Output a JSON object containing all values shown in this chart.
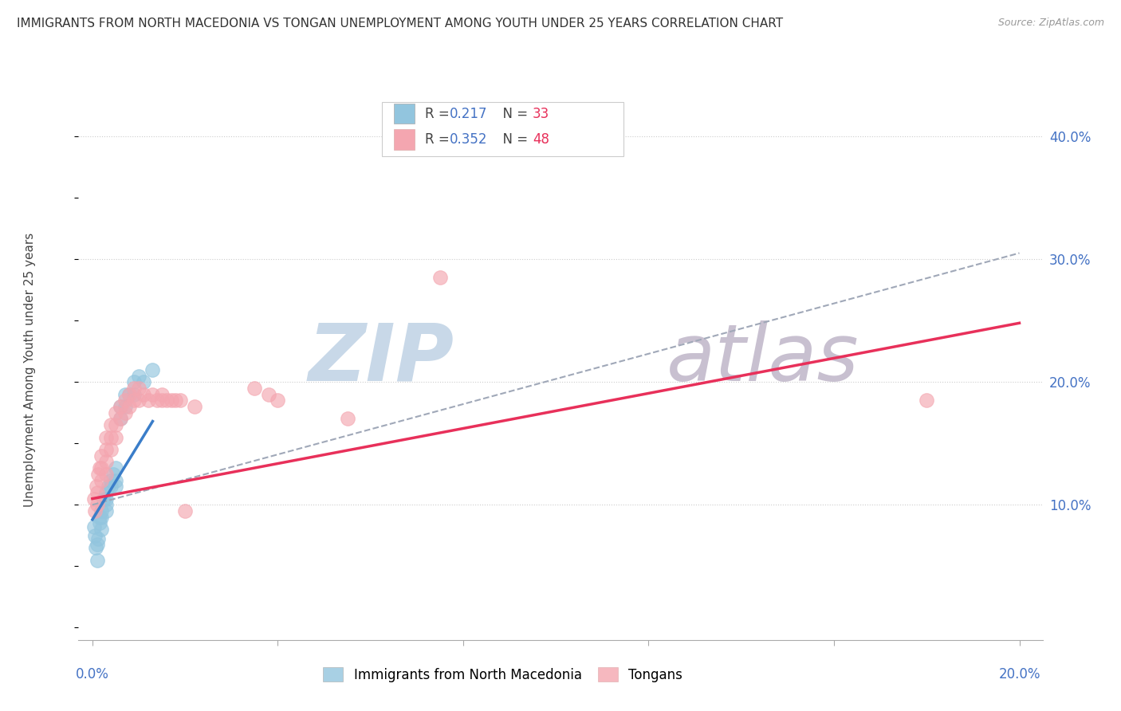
{
  "title": "IMMIGRANTS FROM NORTH MACEDONIA VS TONGAN UNEMPLOYMENT AMONG YOUTH UNDER 25 YEARS CORRELATION CHART",
  "source": "Source: ZipAtlas.com",
  "ylabel": "Unemployment Among Youth under 25 years",
  "legend1_R": "0.217",
  "legend1_N": "33",
  "legend2_R": "0.352",
  "legend2_N": "48",
  "blue_color": "#92c5de",
  "pink_color": "#f4a6b0",
  "blue_line_color": "#3a7dc9",
  "pink_line_color": "#e8305a",
  "grey_dash_color": "#a0a8b8",
  "text_blue": "#4472c4",
  "text_red": "#e8305a",
  "blue_scatter_x": [
    0.0003,
    0.0005,
    0.0007,
    0.001,
    0.001,
    0.0012,
    0.0015,
    0.0015,
    0.002,
    0.002,
    0.002,
    0.0025,
    0.003,
    0.003,
    0.003,
    0.003,
    0.0035,
    0.004,
    0.004,
    0.0045,
    0.005,
    0.005,
    0.005,
    0.006,
    0.006,
    0.007,
    0.007,
    0.008,
    0.009,
    0.009,
    0.01,
    0.011,
    0.013
  ],
  "blue_scatter_y": [
    0.082,
    0.075,
    0.065,
    0.055,
    0.068,
    0.072,
    0.09,
    0.085,
    0.095,
    0.09,
    0.08,
    0.105,
    0.11,
    0.105,
    0.1,
    0.095,
    0.115,
    0.12,
    0.115,
    0.125,
    0.13,
    0.12,
    0.115,
    0.18,
    0.17,
    0.19,
    0.18,
    0.19,
    0.2,
    0.19,
    0.205,
    0.2,
    0.21
  ],
  "pink_scatter_x": [
    0.0003,
    0.0005,
    0.0008,
    0.001,
    0.001,
    0.0013,
    0.0015,
    0.002,
    0.002,
    0.002,
    0.003,
    0.003,
    0.003,
    0.003,
    0.004,
    0.004,
    0.004,
    0.005,
    0.005,
    0.005,
    0.006,
    0.006,
    0.007,
    0.007,
    0.008,
    0.008,
    0.009,
    0.009,
    0.01,
    0.01,
    0.011,
    0.012,
    0.013,
    0.014,
    0.015,
    0.015,
    0.016,
    0.017,
    0.018,
    0.019,
    0.02,
    0.022,
    0.035,
    0.038,
    0.04,
    0.055,
    0.075,
    0.18
  ],
  "pink_scatter_y": [
    0.105,
    0.095,
    0.115,
    0.11,
    0.1,
    0.125,
    0.13,
    0.14,
    0.13,
    0.12,
    0.155,
    0.145,
    0.135,
    0.125,
    0.165,
    0.155,
    0.145,
    0.175,
    0.165,
    0.155,
    0.18,
    0.17,
    0.185,
    0.175,
    0.19,
    0.18,
    0.195,
    0.185,
    0.195,
    0.185,
    0.19,
    0.185,
    0.19,
    0.185,
    0.19,
    0.185,
    0.185,
    0.185,
    0.185,
    0.185,
    0.095,
    0.18,
    0.195,
    0.19,
    0.185,
    0.17,
    0.285,
    0.185
  ],
  "blue_line_x": [
    0.0,
    0.013
  ],
  "blue_line_y": [
    0.088,
    0.168
  ],
  "pink_line_x": [
    0.0,
    0.2
  ],
  "pink_line_y": [
    0.105,
    0.248
  ],
  "grey_line_x": [
    0.0,
    0.2
  ],
  "grey_line_y": [
    0.1,
    0.305
  ],
  "xlim": [
    -0.003,
    0.205
  ],
  "ylim": [
    -0.01,
    0.43
  ],
  "ytick_vals": [
    0.0,
    0.1,
    0.2,
    0.3,
    0.4
  ],
  "ytick_labels": [
    "",
    "10.0%",
    "20.0%",
    "30.0%",
    "40.0%"
  ],
  "xtick_positions": [
    0.0,
    0.04,
    0.08,
    0.12,
    0.16,
    0.2
  ],
  "bottom_legend_labels": [
    "Immigrants from North Macedonia",
    "Tongans"
  ],
  "watermark_zip_color": "#c8d8e8",
  "watermark_atlas_color": "#c8c0d0"
}
